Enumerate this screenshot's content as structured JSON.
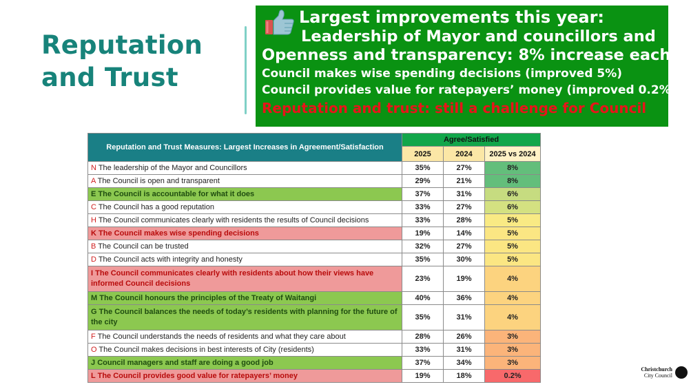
{
  "title": {
    "line1": "Reputation",
    "line2": "and Trust"
  },
  "highlights": {
    "icon": "thumbs-up-icon",
    "line1": "Largest improvements this year:",
    "line2": "Leadership of Mayor and councillors and",
    "line3": "Openness and transparency: 8% increase each",
    "line4": "Council makes wise spending decisions (improved 5%)",
    "line5": "Council provides value for ratepayers’ money (improved 0.2%)",
    "line6": "Reputation and trust: still a challenge for Council"
  },
  "table": {
    "title": "Reputation and Trust Measures: Largest Increases in Agreement/Satisfaction",
    "group_header": "Agree/Satisfied",
    "col_2025": "2025",
    "col_2024": "2024",
    "col_diff": "2025 vs 2024",
    "rows": [
      {
        "letter": "N",
        "text": "The leadership of the Mayor and Councillors",
        "v2025": "35%",
        "v2024": "27%",
        "diff": "8%",
        "diff_color": "#63be7b",
        "highlight": "none"
      },
      {
        "letter": "A",
        "text": "The Council is open and transparent",
        "v2025": "29%",
        "v2024": "21%",
        "diff": "8%",
        "diff_color": "#63be7b",
        "highlight": "none"
      },
      {
        "letter": "E",
        "text": "The Council is accountable for what it does",
        "v2025": "37%",
        "v2024": "31%",
        "diff": "6%",
        "diff_color": "#c6dc80",
        "highlight": "green"
      },
      {
        "letter": "C",
        "text": "The Council has a good reputation",
        "v2025": "33%",
        "v2024": "27%",
        "diff": "6%",
        "diff_color": "#d4e181",
        "highlight": "none"
      },
      {
        "letter": "H",
        "text": "The Council communicates clearly with residents the results of Council decisions",
        "v2025": "33%",
        "v2024": "28%",
        "diff": "5%",
        "diff_color": "#f9ea84",
        "highlight": "none"
      },
      {
        "letter": "K",
        "text": "The Council makes wise spending decisions",
        "v2025": "19%",
        "v2024": "14%",
        "diff": "5%",
        "diff_color": "#fbe683",
        "highlight": "red"
      },
      {
        "letter": "B",
        "text": "The Council can be trusted",
        "v2025": "32%",
        "v2024": "27%",
        "diff": "5%",
        "diff_color": "#fbe683",
        "highlight": "none"
      },
      {
        "letter": "D",
        "text": "The Council acts with integrity and honesty",
        "v2025": "35%",
        "v2024": "30%",
        "diff": "5%",
        "diff_color": "#fbe683",
        "highlight": "none"
      },
      {
        "letter": "I",
        "text": "The Council communicates clearly with residents about how their views have informed Council decisions",
        "v2025": "23%",
        "v2024": "19%",
        "diff": "4%",
        "diff_color": "#fcd37f",
        "highlight": "red"
      },
      {
        "letter": "M",
        "text": "The Council honours the principles of the Treaty of Waitangi",
        "v2025": "40%",
        "v2024": "36%",
        "diff": "4%",
        "diff_color": "#fcd37f",
        "highlight": "green"
      },
      {
        "letter": "G",
        "text": "The Council balances the needs of today’s residents with planning for the future of the city",
        "v2025": "35%",
        "v2024": "31%",
        "diff": "4%",
        "diff_color": "#fcd37f",
        "highlight": "green"
      },
      {
        "letter": "F",
        "text": "The Council understands the needs of residents and what they care about",
        "v2025": "28%",
        "v2024": "26%",
        "diff": "3%",
        "diff_color": "#fbb47a",
        "highlight": "none"
      },
      {
        "letter": "O",
        "text": "The Council makes decisions in best interests of City (residents)",
        "v2025": "33%",
        "v2024": "31%",
        "diff": "3%",
        "diff_color": "#fbb47a",
        "highlight": "none"
      },
      {
        "letter": "J",
        "text": "Council managers and staff are doing a good job",
        "v2025": "37%",
        "v2024": "34%",
        "diff": "3%",
        "diff_color": "#fbb47a",
        "highlight": "green"
      },
      {
        "letter": "L",
        "text": "The Council provides good value for ratepayers’ money",
        "v2025": "19%",
        "v2024": "18%",
        "diff": "0.2%",
        "diff_color": "#f8696b",
        "highlight": "red"
      }
    ]
  },
  "logo": {
    "line1": "Christchurch",
    "line2": "City Council"
  }
}
